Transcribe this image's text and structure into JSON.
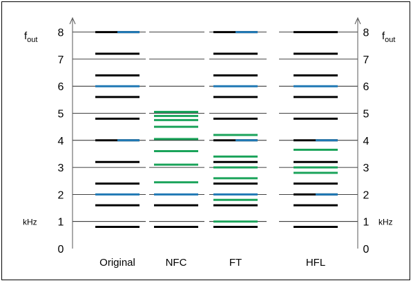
{
  "axis": {
    "ticks": [
      "0",
      "1",
      "2",
      "3",
      "4",
      "5",
      "6",
      "7",
      "8"
    ],
    "label_main": "f",
    "label_sub": "out",
    "unit": "kHz"
  },
  "colors": {
    "black": "#000000",
    "blue": "#1f78b4",
    "green": "#1aa35a"
  },
  "columns": [
    {
      "label": "Original",
      "lines": [
        {
          "f": 0.8,
          "color": "black"
        },
        {
          "f": 1.6,
          "color": "black"
        },
        {
          "f": 2.0,
          "color": "blue"
        },
        {
          "f": 2.4,
          "color": "black"
        },
        {
          "f": 3.2,
          "color": "black"
        },
        {
          "f": 4.0,
          "color": "black",
          "accent": "blue"
        },
        {
          "f": 4.8,
          "color": "black"
        },
        {
          "f": 5.6,
          "color": "black"
        },
        {
          "f": 6.0,
          "color": "blue"
        },
        {
          "f": 6.4,
          "color": "black"
        },
        {
          "f": 7.2,
          "color": "black"
        },
        {
          "f": 8.0,
          "color": "black",
          "accent": "blue"
        }
      ]
    },
    {
      "label": "NFC",
      "lines": [
        {
          "f": 0.8,
          "color": "black"
        },
        {
          "f": 1.6,
          "color": "black"
        },
        {
          "f": 2.0,
          "color": "blue"
        },
        {
          "f": 2.45,
          "color": "green"
        },
        {
          "f": 3.1,
          "color": "green"
        },
        {
          "f": 3.6,
          "color": "green"
        },
        {
          "f": 4.05,
          "color": "green"
        },
        {
          "f": 4.5,
          "color": "green"
        },
        {
          "f": 4.75,
          "color": "green"
        },
        {
          "f": 4.9,
          "color": "green"
        },
        {
          "f": 5.05,
          "color": "green"
        }
      ]
    },
    {
      "label": "FT",
      "lines": [
        {
          "f": 0.8,
          "color": "black"
        },
        {
          "f": 1.0,
          "color": "green"
        },
        {
          "f": 1.6,
          "color": "black"
        },
        {
          "f": 1.8,
          "color": "green"
        },
        {
          "f": 2.0,
          "color": "blue"
        },
        {
          "f": 2.4,
          "color": "black"
        },
        {
          "f": 2.6,
          "color": "green"
        },
        {
          "f": 3.0,
          "color": "green"
        },
        {
          "f": 3.2,
          "color": "black"
        },
        {
          "f": 3.4,
          "color": "green"
        },
        {
          "f": 4.0,
          "color": "black",
          "accent": "blue"
        },
        {
          "f": 4.2,
          "color": "green"
        },
        {
          "f": 4.8,
          "color": "black"
        },
        {
          "f": 5.6,
          "color": "black"
        },
        {
          "f": 6.0,
          "color": "blue"
        },
        {
          "f": 6.4,
          "color": "black"
        },
        {
          "f": 7.2,
          "color": "black"
        },
        {
          "f": 8.0,
          "color": "black",
          "accent": "blue"
        }
      ]
    },
    {
      "label": "HFL",
      "lines": [
        {
          "f": 0.8,
          "color": "black"
        },
        {
          "f": 1.6,
          "color": "black"
        },
        {
          "f": 2.0,
          "color": "black",
          "accent": "blue"
        },
        {
          "f": 2.4,
          "color": "black"
        },
        {
          "f": 2.8,
          "color": "green"
        },
        {
          "f": 3.0,
          "color": "green"
        },
        {
          "f": 3.2,
          "color": "black"
        },
        {
          "f": 3.65,
          "color": "green"
        },
        {
          "f": 4.0,
          "color": "black",
          "accent": "blue"
        },
        {
          "f": 4.8,
          "color": "black"
        },
        {
          "f": 5.6,
          "color": "black"
        },
        {
          "f": 6.0,
          "color": "blue"
        },
        {
          "f": 6.4,
          "color": "black"
        },
        {
          "f": 7.2,
          "color": "black"
        },
        {
          "f": 8.0,
          "color": "black"
        }
      ]
    }
  ]
}
